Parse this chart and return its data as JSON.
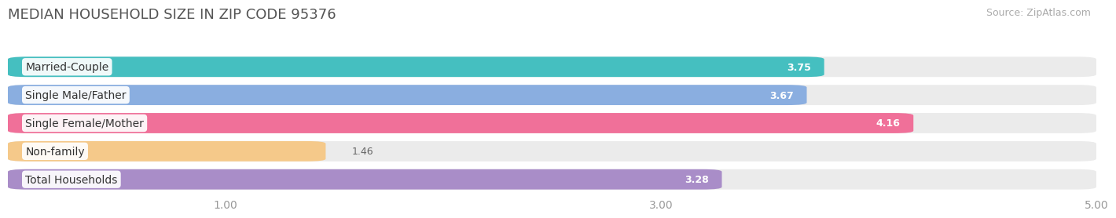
{
  "title": "MEDIAN HOUSEHOLD SIZE IN ZIP CODE 95376",
  "source": "Source: ZipAtlas.com",
  "categories": [
    "Married-Couple",
    "Single Male/Father",
    "Single Female/Mother",
    "Non-family",
    "Total Households"
  ],
  "values": [
    3.75,
    3.67,
    4.16,
    1.46,
    3.28
  ],
  "colors": [
    "#45BFC0",
    "#8AAEE0",
    "#F07099",
    "#F5C98A",
    "#A98DC8"
  ],
  "xlim": [
    0,
    5.0
  ],
  "xticks": [
    1.0,
    3.0,
    5.0
  ],
  "xtick_labels": [
    "1.00",
    "3.00",
    "5.00"
  ],
  "bar_height": 0.72,
  "bar_gap": 0.28,
  "label_fontsize": 10,
  "value_fontsize": 9,
  "title_fontsize": 13,
  "source_fontsize": 9,
  "background_color": "#ffffff",
  "bar_background_color": "#ebebeb"
}
